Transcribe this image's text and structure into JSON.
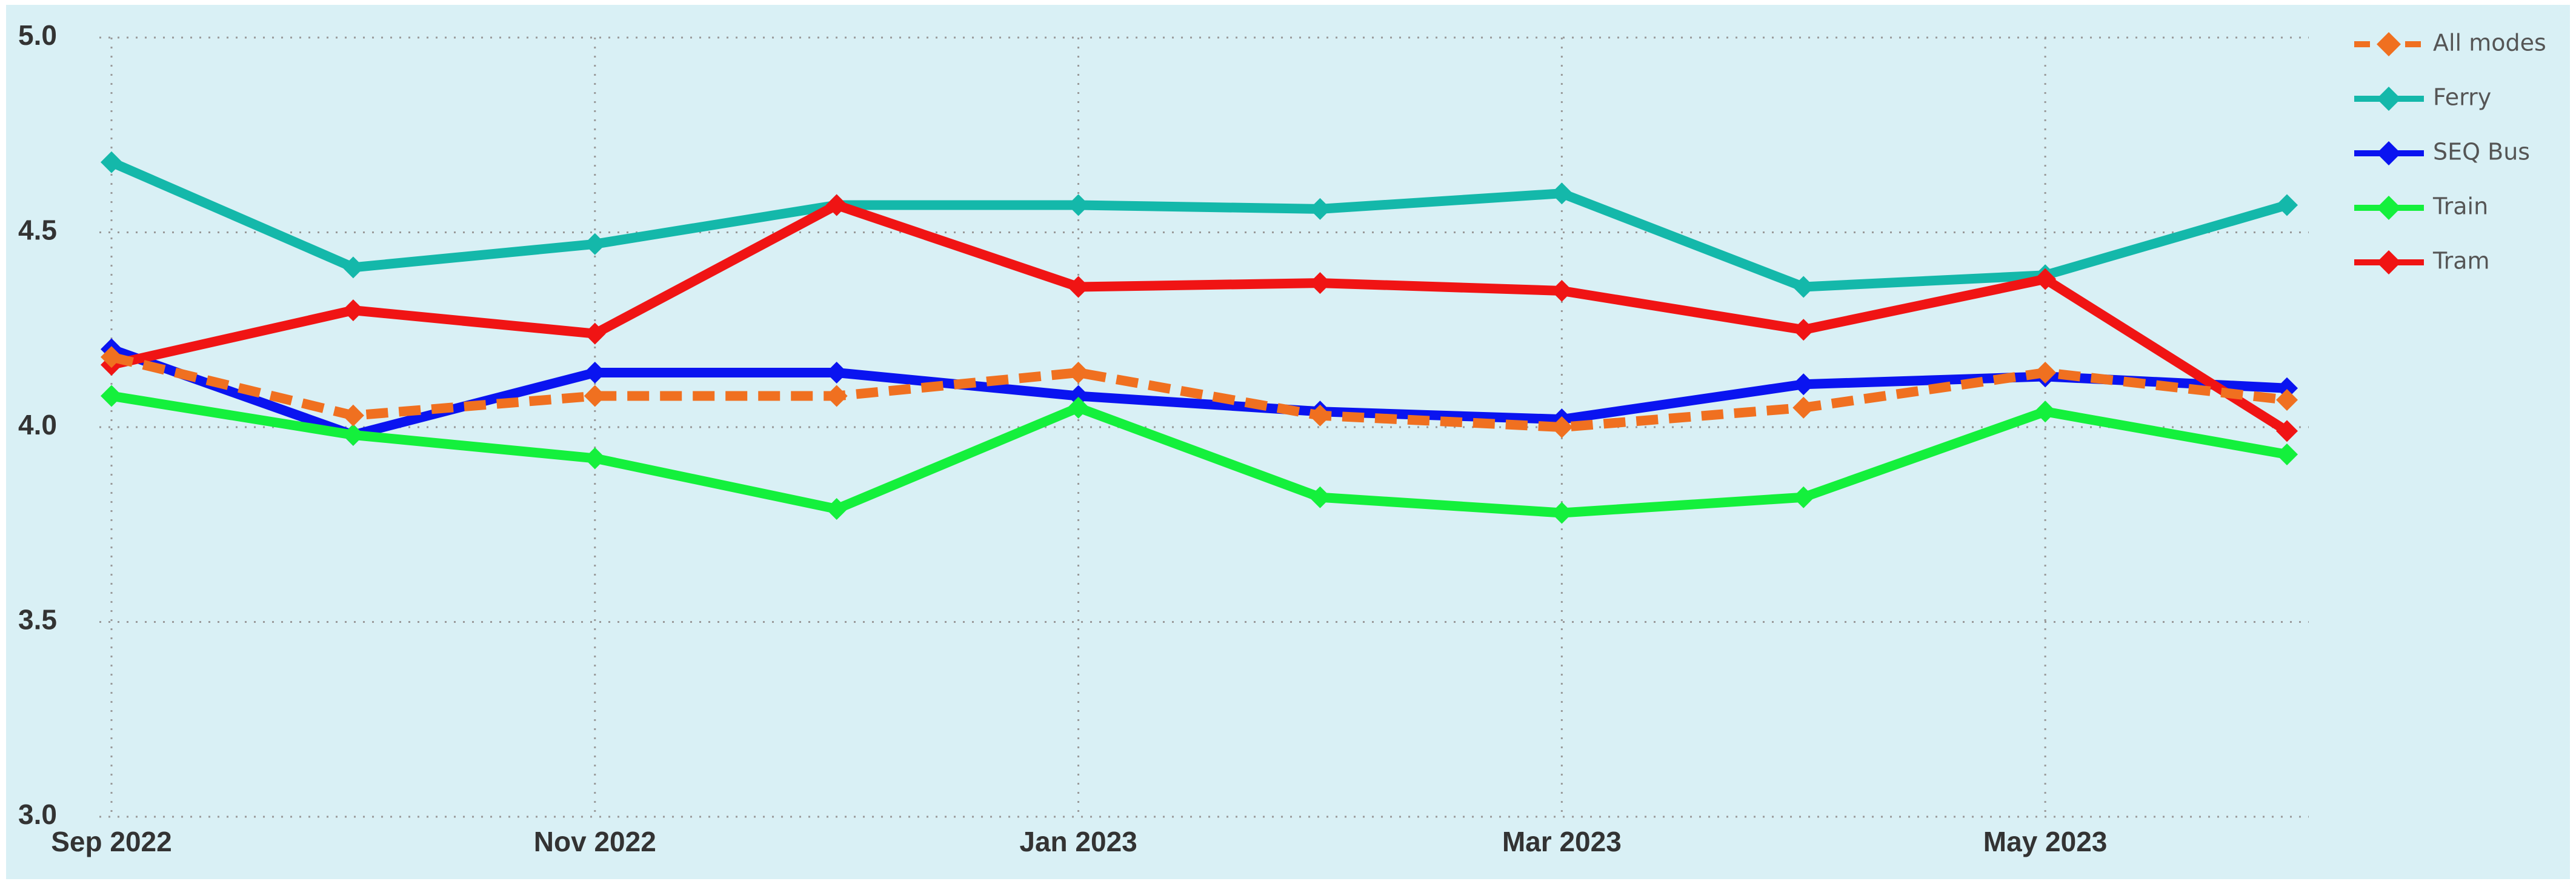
{
  "chart_data": {
    "type": "line",
    "categories": [
      "Sep 2022",
      null,
      "Nov 2022",
      null,
      "Jan 2023",
      null,
      "Mar 2023",
      null,
      "May 2023",
      null
    ],
    "series": [
      {
        "name": "All modes",
        "color": "#f07020",
        "style": "dashed",
        "values": [
          4.18,
          4.03,
          4.08,
          4.08,
          4.14,
          4.03,
          4.0,
          4.05,
          4.14,
          4.07
        ]
      },
      {
        "name": "Ferry",
        "color": "#14b8aa",
        "style": "solid",
        "values": [
          4.68,
          4.41,
          4.47,
          4.57,
          4.57,
          4.56,
          4.6,
          4.36,
          4.39,
          4.57
        ]
      },
      {
        "name": "SEQ Bus",
        "color": "#0a14f0",
        "style": "solid",
        "values": [
          4.2,
          3.98,
          4.14,
          4.14,
          4.08,
          4.04,
          4.02,
          4.11,
          4.13,
          4.1
        ]
      },
      {
        "name": "Train",
        "color": "#14f03c",
        "style": "solid",
        "values": [
          4.08,
          3.98,
          3.92,
          3.79,
          4.05,
          3.82,
          3.78,
          3.82,
          4.04,
          3.93
        ]
      },
      {
        "name": "Tram",
        "color": "#f01414",
        "style": "solid",
        "values": [
          4.16,
          4.3,
          4.24,
          4.57,
          4.36,
          4.37,
          4.35,
          4.25,
          4.38,
          3.99
        ]
      }
    ],
    "ylim": [
      3,
      5
    ],
    "yticks": [
      {
        "value": 3,
        "label": "3.0"
      },
      {
        "value": 3.5,
        "label": "3.5"
      },
      {
        "value": 4,
        "label": "4.0"
      },
      {
        "value": 4.5,
        "label": "4.5"
      },
      {
        "value": 5,
        "label": "5.0"
      }
    ],
    "grid": true,
    "legend": "right"
  }
}
